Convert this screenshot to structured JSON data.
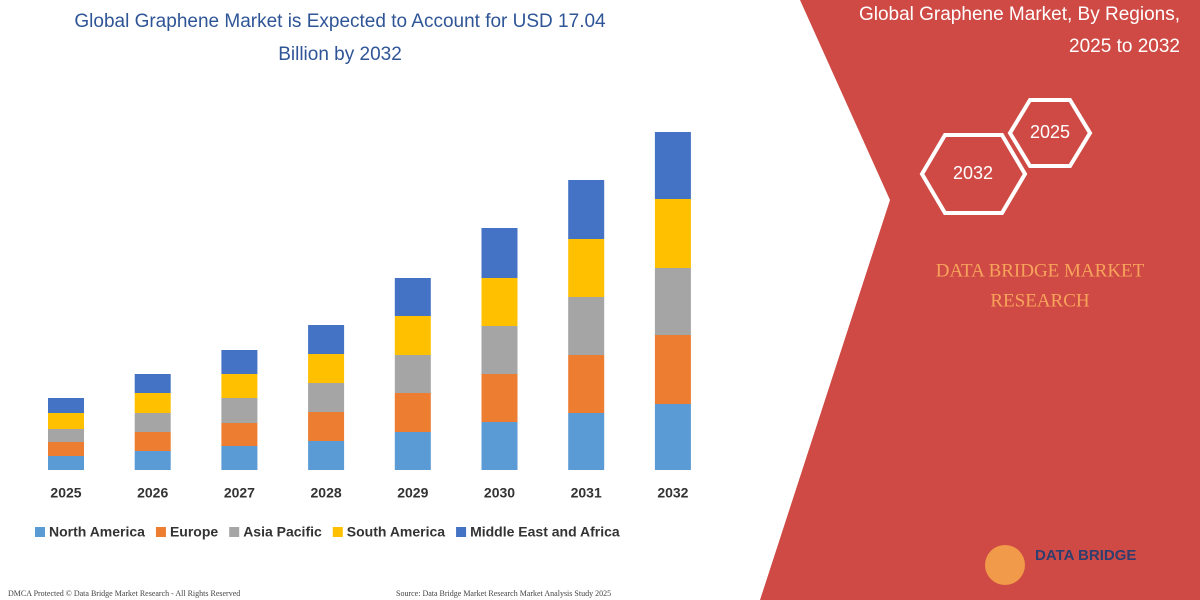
{
  "chart_data": {
    "type": "stacked-bar",
    "title": "Global Graphene Market is Expected to Account for USD 17.04",
    "subtitle": "Billion by 2032",
    "categories": [
      "2025",
      "2026",
      "2027",
      "2028",
      "2029",
      "2030",
      "2031",
      "2032"
    ],
    "series": [
      {
        "name": "North America",
        "color": "#5b9bd5",
        "values": [
          14,
          19,
          24,
          29,
          38,
          48,
          57,
          66
        ]
      },
      {
        "name": "Europe",
        "color": "#ed7d31",
        "values": [
          14,
          19,
          23,
          29,
          39,
          48,
          58,
          69
        ]
      },
      {
        "name": "Asia Pacific",
        "color": "#a5a5a5",
        "values": [
          13,
          19,
          25,
          29,
          38,
          48,
          58,
          67
        ]
      },
      {
        "name": "South America",
        "color": "#ffc000",
        "values": [
          16,
          20,
          24,
          29,
          39,
          48,
          58,
          69
        ]
      },
      {
        "name": "Middle East and Africa",
        "color": "#4472c4",
        "values": [
          15,
          19,
          24,
          29,
          38,
          50,
          59,
          67
        ]
      }
    ]
  },
  "panel": {
    "title": "Global Graphene Market, By Regions,",
    "subtitle": "2025 to 2032",
    "hexagons": [
      "2025",
      "2032"
    ],
    "brand": [
      "DATA BRIDGE MARKET",
      "RESEARCH"
    ]
  },
  "footer": {
    "logo": "DATA BRIDGE",
    "left": "DMCA Protected © Data Bridge Market Research - All Rights Reserved",
    "right": "Source: Data Bridge Market Research Market Analysis Study 2025"
  }
}
